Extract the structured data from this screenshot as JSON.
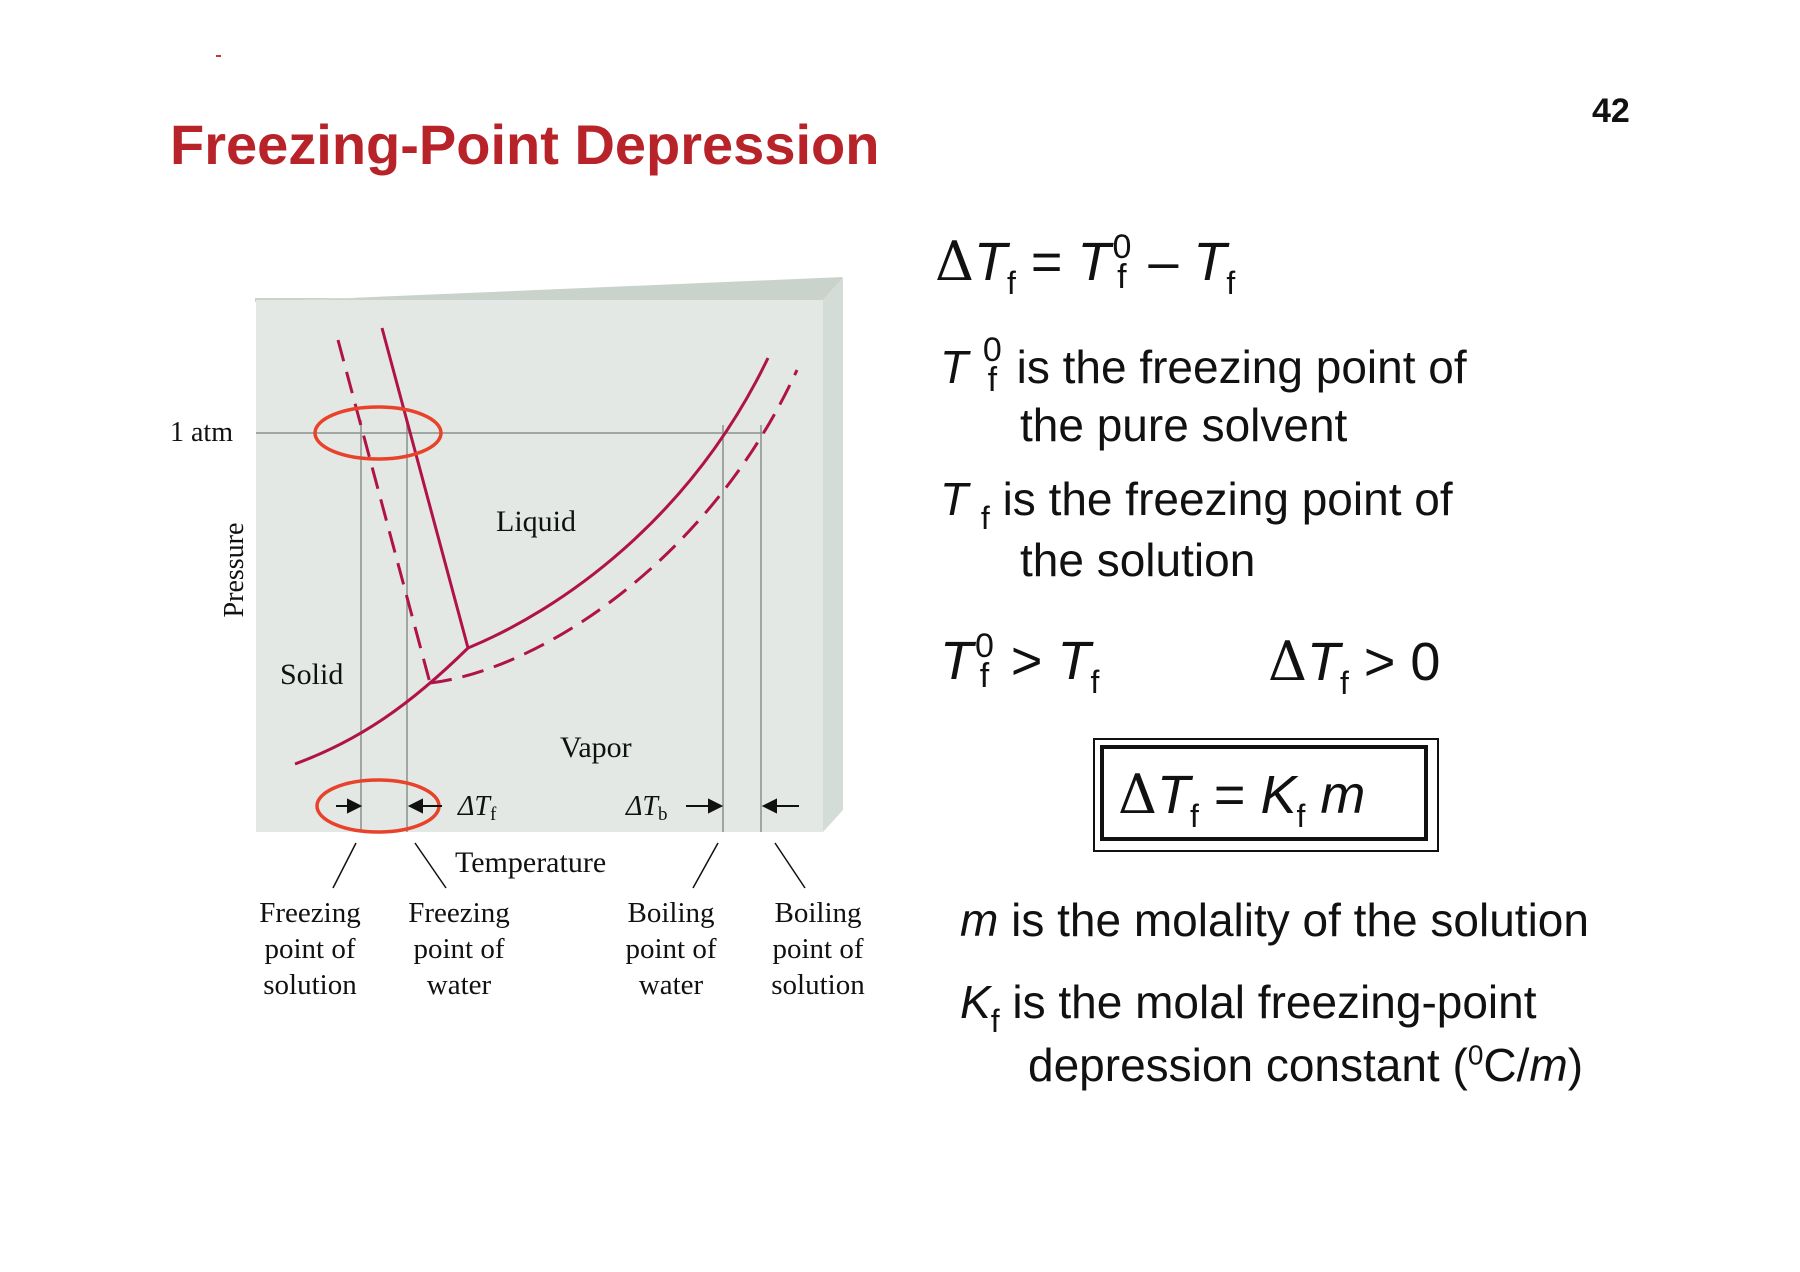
{
  "slide": {
    "title": "Freezing-Point Depression",
    "page_number": "42"
  },
  "diagram": {
    "pressure_label": "Pressure",
    "atm_label": "1 atm",
    "temperature_label": "Temperature",
    "regions": {
      "solid": "Solid",
      "liquid": "Liquid",
      "vapor": "Vapor"
    },
    "delta_tf": "ΔT",
    "delta_tf_sub": "f",
    "delta_tb": "ΔT",
    "delta_tb_sub": "b",
    "callouts": {
      "fp_solution": [
        "Freezing",
        "point of",
        "solution"
      ],
      "fp_water": [
        "Freezing",
        "point of",
        "water"
      ],
      "bp_water": [
        "Boiling",
        "point of",
        "water"
      ],
      "bp_solution": [
        "Boiling",
        "point of",
        "solution"
      ]
    },
    "colors": {
      "curve": "#b0124a",
      "highlight": "#e8422a",
      "panel": "#e3e8e4",
      "panel_top": "#c9d3cc",
      "panel_side": "#d3dcd6"
    }
  },
  "formulas": {
    "definition": {
      "delta": "Δ",
      "T": "T",
      "f": "f",
      "eq": " = ",
      "zero": "0",
      "minus": " – "
    },
    "tf0_desc": {
      "line1": "is the freezing point of",
      "line2": "the pure solvent"
    },
    "tf_desc": {
      "line1": "is the freezing point of",
      "line2": "the solution"
    },
    "inequality": {
      "gt": " > ",
      "gt0": " > 0"
    },
    "boxed": {
      "eq": " = ",
      "K": "K",
      "m": "m"
    },
    "molality_desc": {
      "m": "m",
      "text": " is the molality of the solution"
    },
    "kf_desc": {
      "K": "K",
      "f": "f",
      "line1": " is the molal freezing-point",
      "line2_pre": "depression constant (",
      "sup": "0",
      "line2_c": "C/",
      "m": "m",
      "close": ")"
    }
  }
}
